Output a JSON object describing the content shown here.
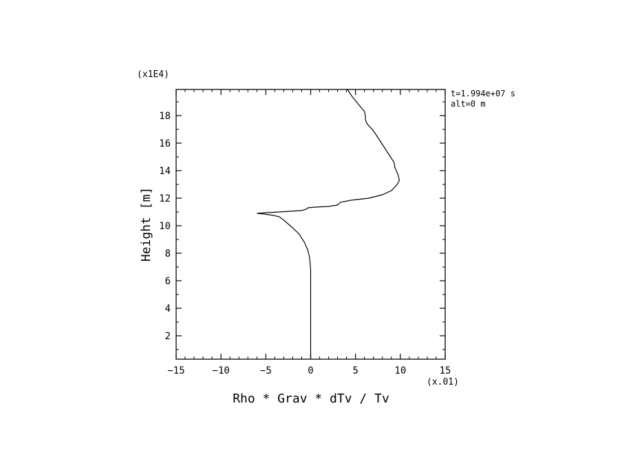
{
  "chart_data": {
    "type": "line",
    "xlabel": "Rho * Grav * dTv / Tv",
    "ylabel": "Height [m]",
    "x_multiplier": "(x.01)",
    "y_multiplier": "(x1E4)",
    "xlim": [
      -15,
      15
    ],
    "ylim": [
      0.3,
      19.9
    ],
    "xticks": [
      -15,
      -10,
      -5,
      0,
      5,
      10,
      15
    ],
    "yticks": [
      2,
      4,
      6,
      8,
      10,
      12,
      14,
      16,
      18
    ],
    "grid": false,
    "annotations": [
      "t=1.994e+07 s",
      "alt=0 m"
    ],
    "series": [
      {
        "color": "#000000",
        "points": [
          [
            0.0,
            0.3
          ],
          [
            0.0,
            2.0
          ],
          [
            0.0,
            4.0
          ],
          [
            0.0,
            6.0
          ],
          [
            0.0,
            6.8
          ],
          [
            -0.1,
            7.6
          ],
          [
            -0.3,
            8.2
          ],
          [
            -0.7,
            8.8
          ],
          [
            -1.3,
            9.4
          ],
          [
            -2.1,
            9.9
          ],
          [
            -2.9,
            10.35
          ],
          [
            -3.5,
            10.65
          ],
          [
            -4.2,
            10.75
          ],
          [
            -5.2,
            10.85
          ],
          [
            -6.0,
            10.9
          ],
          [
            -3.5,
            11.0
          ],
          [
            -1.0,
            11.1
          ],
          [
            -0.5,
            11.2
          ],
          [
            -0.3,
            11.3
          ],
          [
            0.5,
            11.35
          ],
          [
            2.0,
            11.4
          ],
          [
            3.0,
            11.5
          ],
          [
            3.3,
            11.7
          ],
          [
            4.5,
            11.85
          ],
          [
            6.5,
            12.0
          ],
          [
            8.0,
            12.25
          ],
          [
            9.0,
            12.55
          ],
          [
            9.6,
            12.95
          ],
          [
            9.9,
            13.3
          ],
          [
            9.7,
            13.8
          ],
          [
            9.4,
            14.2
          ],
          [
            9.3,
            14.6
          ],
          [
            9.0,
            14.9
          ],
          [
            8.5,
            15.4
          ],
          [
            8.0,
            15.9
          ],
          [
            7.5,
            16.4
          ],
          [
            7.0,
            16.9
          ],
          [
            6.3,
            17.4
          ],
          [
            6.1,
            17.7
          ],
          [
            6.1,
            18.0
          ],
          [
            6.0,
            18.3
          ],
          [
            5.6,
            18.6
          ],
          [
            5.1,
            19.0
          ],
          [
            4.6,
            19.4
          ],
          [
            4.2,
            19.8
          ],
          [
            4.1,
            19.9
          ]
        ]
      }
    ]
  }
}
